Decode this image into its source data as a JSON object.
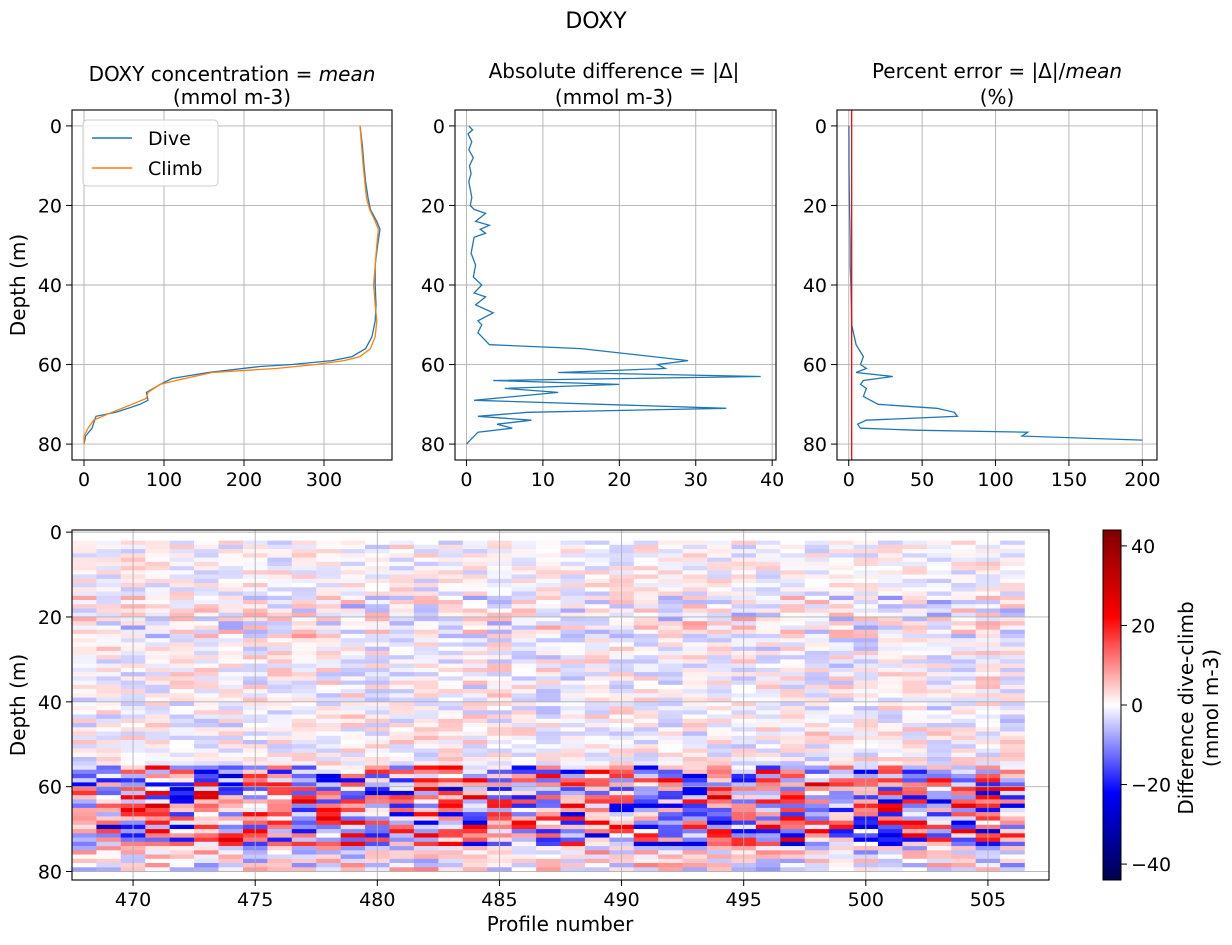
{
  "suptitle": "DOXY",
  "colors": {
    "dive": "#1f77b4",
    "climb": "#ff7f0e",
    "ref_line": "#ff0000",
    "grid": "#b0b0b0"
  },
  "chart_data": [
    {
      "type": "line",
      "title": "DOXY concentration = mean",
      "title_line1_text": "DOXY concentration ",
      "title_line1_italic": "= mean",
      "title_line2": "(mmol m-3)",
      "ylabel": "Depth (m)",
      "xlim": [
        -15,
        385
      ],
      "ylim": [
        84,
        -4
      ],
      "y_inverted": true,
      "grid": true,
      "xticks": [
        0,
        100,
        200,
        300
      ],
      "yticks": [
        0,
        20,
        40,
        60,
        80
      ],
      "legend": {
        "position": "upper-left",
        "entries": [
          "Dive",
          "Climb"
        ]
      },
      "series": [
        {
          "name": "Dive",
          "color": "#1f77b4",
          "x": [
            345,
            348,
            350,
            352,
            355,
            358,
            366,
            370,
            367,
            364,
            364,
            365,
            364,
            360,
            352,
            335,
            310,
            260,
            220,
            155,
            110,
            95,
            78,
            80,
            70,
            40,
            15,
            10,
            2,
            0
          ],
          "y": [
            0,
            5,
            10,
            14,
            18,
            21,
            24,
            26,
            30,
            35,
            40,
            45,
            49,
            53,
            56,
            58,
            59,
            60,
            60.5,
            62,
            63.5,
            65,
            67,
            69,
            70,
            72,
            73,
            76,
            78,
            80
          ]
        },
        {
          "name": "Climb",
          "color": "#ff7f0e",
          "x": [
            345,
            347,
            349,
            351,
            353,
            357,
            364,
            368,
            366,
            364,
            362,
            364,
            366,
            364,
            358,
            345,
            325,
            290,
            240,
            160,
            115,
            95,
            80,
            78,
            60,
            35,
            12,
            5,
            0,
            0
          ],
          "y": [
            0,
            5,
            10,
            14,
            18,
            21,
            24,
            26,
            30,
            35,
            40,
            45,
            49,
            53,
            56,
            58,
            59,
            60,
            61,
            62,
            64,
            65,
            67,
            68.5,
            70,
            72,
            74,
            76,
            78,
            80
          ]
        }
      ]
    },
    {
      "type": "line",
      "title": "Absolute difference = |Δ|",
      "title_line1_text": "Absolute difference = |Δ|",
      "title_line1_italic": "",
      "title_line2": "(mmol m-3)",
      "xlim": [
        -1.5,
        40.5
      ],
      "ylim": [
        84,
        -4
      ],
      "y_inverted": true,
      "grid": true,
      "xticks": [
        0,
        10,
        20,
        30,
        40
      ],
      "yticks": [
        0,
        20,
        40,
        60,
        80
      ],
      "series": [
        {
          "name": "",
          "color": "#1f77b4",
          "x": [
            0.3,
            0.8,
            0.2,
            0.7,
            0.3,
            0.9,
            0.4,
            0.6,
            0.3,
            0.5,
            0.7,
            0.5,
            1.0,
            2.5,
            1.2,
            3.0,
            1.8,
            2.5,
            1.0,
            0.8,
            0.6,
            1.2,
            0.9,
            2.0,
            1.0,
            2.5,
            1.2,
            3.5,
            1.5,
            2.0,
            1.5,
            2.5,
            3.0,
            15,
            29,
            25,
            26,
            12,
            38.5,
            3.5,
            20,
            5,
            12,
            1,
            34,
            8,
            1.5,
            8.5,
            4,
            6,
            1.5,
            0.5,
            0
          ],
          "y": [
            0,
            1,
            2,
            4,
            6,
            8,
            10,
            12,
            14,
            16,
            18,
            20,
            21,
            22,
            24,
            25,
            26,
            27,
            28,
            30,
            32,
            35,
            38,
            40,
            42,
            43,
            45,
            47,
            49,
            50,
            52,
            54,
            55,
            56,
            59,
            60,
            61,
            62,
            63,
            64,
            65,
            66,
            67,
            69,
            71,
            72,
            73,
            74,
            75,
            76,
            77,
            79,
            80
          ]
        }
      ]
    },
    {
      "type": "line",
      "title": "Percent error = |Δ|/mean",
      "title_line1_text": "Percent error = |Δ|/",
      "title_line1_italic": "mean",
      "title_line2": "(%)",
      "xlim": [
        -8,
        210
      ],
      "ylim": [
        84,
        -4
      ],
      "y_inverted": true,
      "grid": true,
      "xticks": [
        0,
        50,
        100,
        150,
        200
      ],
      "yticks": [
        0,
        20,
        40,
        60,
        80
      ],
      "reference_line": {
        "x": 2,
        "color": "#ff0000"
      },
      "series": [
        {
          "name": "",
          "color": "#1f77b4",
          "x": [
            0.1,
            0.2,
            0.2,
            0.3,
            0.5,
            0.8,
            1.0,
            1.0,
            1.5,
            2.0,
            5,
            10,
            8,
            12,
            5,
            30,
            10,
            8,
            12,
            10,
            20,
            60,
            72,
            74,
            12,
            6,
            8,
            45,
            122,
            118,
            200
          ],
          "y": [
            0,
            5,
            10,
            15,
            20,
            25,
            30,
            35,
            40,
            50,
            55,
            58,
            60,
            61,
            62,
            63,
            64,
            65,
            66,
            68,
            70,
            71,
            72,
            73,
            74,
            75,
            76,
            76.5,
            77,
            78,
            79
          ]
        }
      ]
    },
    {
      "type": "heatmap",
      "xlabel": "Profile number",
      "ylabel": "Depth (m)",
      "xlim": [
        467.5,
        507.5
      ],
      "ylim": [
        82,
        -0.5
      ],
      "y_inverted": true,
      "grid": true,
      "xticks": [
        470,
        475,
        480,
        485,
        490,
        495,
        500,
        505
      ],
      "yticks": [
        0,
        20,
        40,
        60,
        80
      ],
      "profiles": [
        468,
        506
      ],
      "depth_range": [
        2,
        80
      ],
      "cmap": "seismic",
      "colorbar": {
        "label_line1": "Difference dive-climb",
        "label_line2": "(mmol m-3)",
        "vmin": -44,
        "vmax": 44,
        "ticks": [
          -40,
          -20,
          0,
          20,
          40
        ]
      }
    }
  ]
}
